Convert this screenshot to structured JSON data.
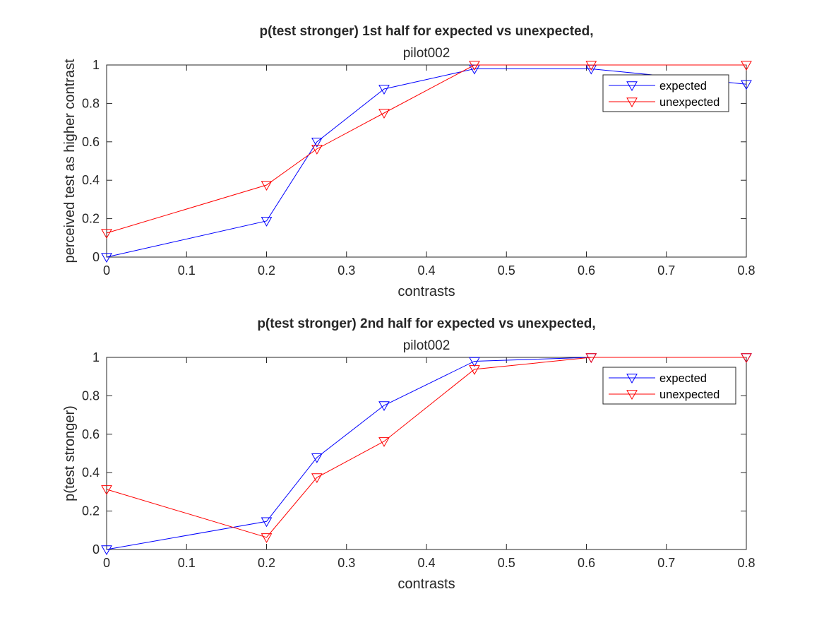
{
  "chart_data": [
    {
      "type": "line",
      "title": "p(test stronger) 1st half for expected vs unexpected,",
      "subtitle": "pilot002",
      "xlabel": "contrasts",
      "ylabel": "perceived test as higher contrast",
      "xlim": [
        0,
        0.8
      ],
      "ylim": [
        0,
        1
      ],
      "xticks": [
        "0",
        "0.1",
        "0.2",
        "0.3",
        "0.4",
        "0.5",
        "0.6",
        "0.7",
        "0.8"
      ],
      "yticks": [
        "0",
        "0.2",
        "0.4",
        "0.6",
        "0.8",
        "1"
      ],
      "grid": false,
      "legend": "top-right",
      "x": [
        0,
        0.2,
        0.263,
        0.347,
        0.46,
        0.606,
        0.8
      ],
      "series": [
        {
          "name": "expected",
          "color": "#0000ff",
          "marker": "triangle-down",
          "values": [
            0,
            0.188,
            0.6,
            0.875,
            0.98,
            0.98,
            0.9
          ]
        },
        {
          "name": "unexpected",
          "color": "#ff0000",
          "marker": "triangle-down",
          "values": [
            0.125,
            0.375,
            0.563,
            0.75,
            1.0,
            1.0,
            1.0
          ]
        }
      ]
    },
    {
      "type": "line",
      "title": "p(test stronger) 2nd half for expected vs unexpected,",
      "subtitle": "pilot002",
      "xlabel": "contrasts",
      "ylabel": "p(test stronger)",
      "xlim": [
        0,
        0.8
      ],
      "ylim": [
        0,
        1
      ],
      "xticks": [
        "0",
        "0.1",
        "0.2",
        "0.3",
        "0.4",
        "0.5",
        "0.6",
        "0.7",
        "0.8"
      ],
      "yticks": [
        "0",
        "0.2",
        "0.4",
        "0.6",
        "0.8",
        "1"
      ],
      "grid": false,
      "legend": "top-right",
      "x": [
        0,
        0.2,
        0.263,
        0.347,
        0.46,
        0.606,
        0.8
      ],
      "series": [
        {
          "name": "expected",
          "color": "#0000ff",
          "marker": "triangle-down",
          "values": [
            0,
            0.146,
            0.479,
            0.75,
            0.98,
            1.0,
            1.0
          ]
        },
        {
          "name": "unexpected",
          "color": "#ff0000",
          "marker": "triangle-down",
          "values": [
            0.313,
            0.063,
            0.375,
            0.563,
            0.938,
            1.0,
            1.0
          ]
        }
      ]
    }
  ]
}
